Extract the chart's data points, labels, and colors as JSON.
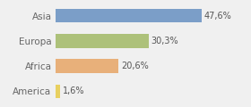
{
  "categories": [
    "Asia",
    "Europa",
    "Africa",
    "America"
  ],
  "values": [
    47.6,
    30.3,
    20.6,
    1.6
  ],
  "labels": [
    "47,6%",
    "30,3%",
    "20,6%",
    "1,6%"
  ],
  "bar_colors": [
    "#7b9ec8",
    "#adc17a",
    "#e8b07a",
    "#e8d060"
  ],
  "background_color": "#f0f0f0",
  "xlim": [
    0,
    62
  ],
  "bar_height": 0.55,
  "label_fontsize": 7,
  "tick_fontsize": 7.5,
  "label_color": "#555555",
  "tick_color": "#666666"
}
